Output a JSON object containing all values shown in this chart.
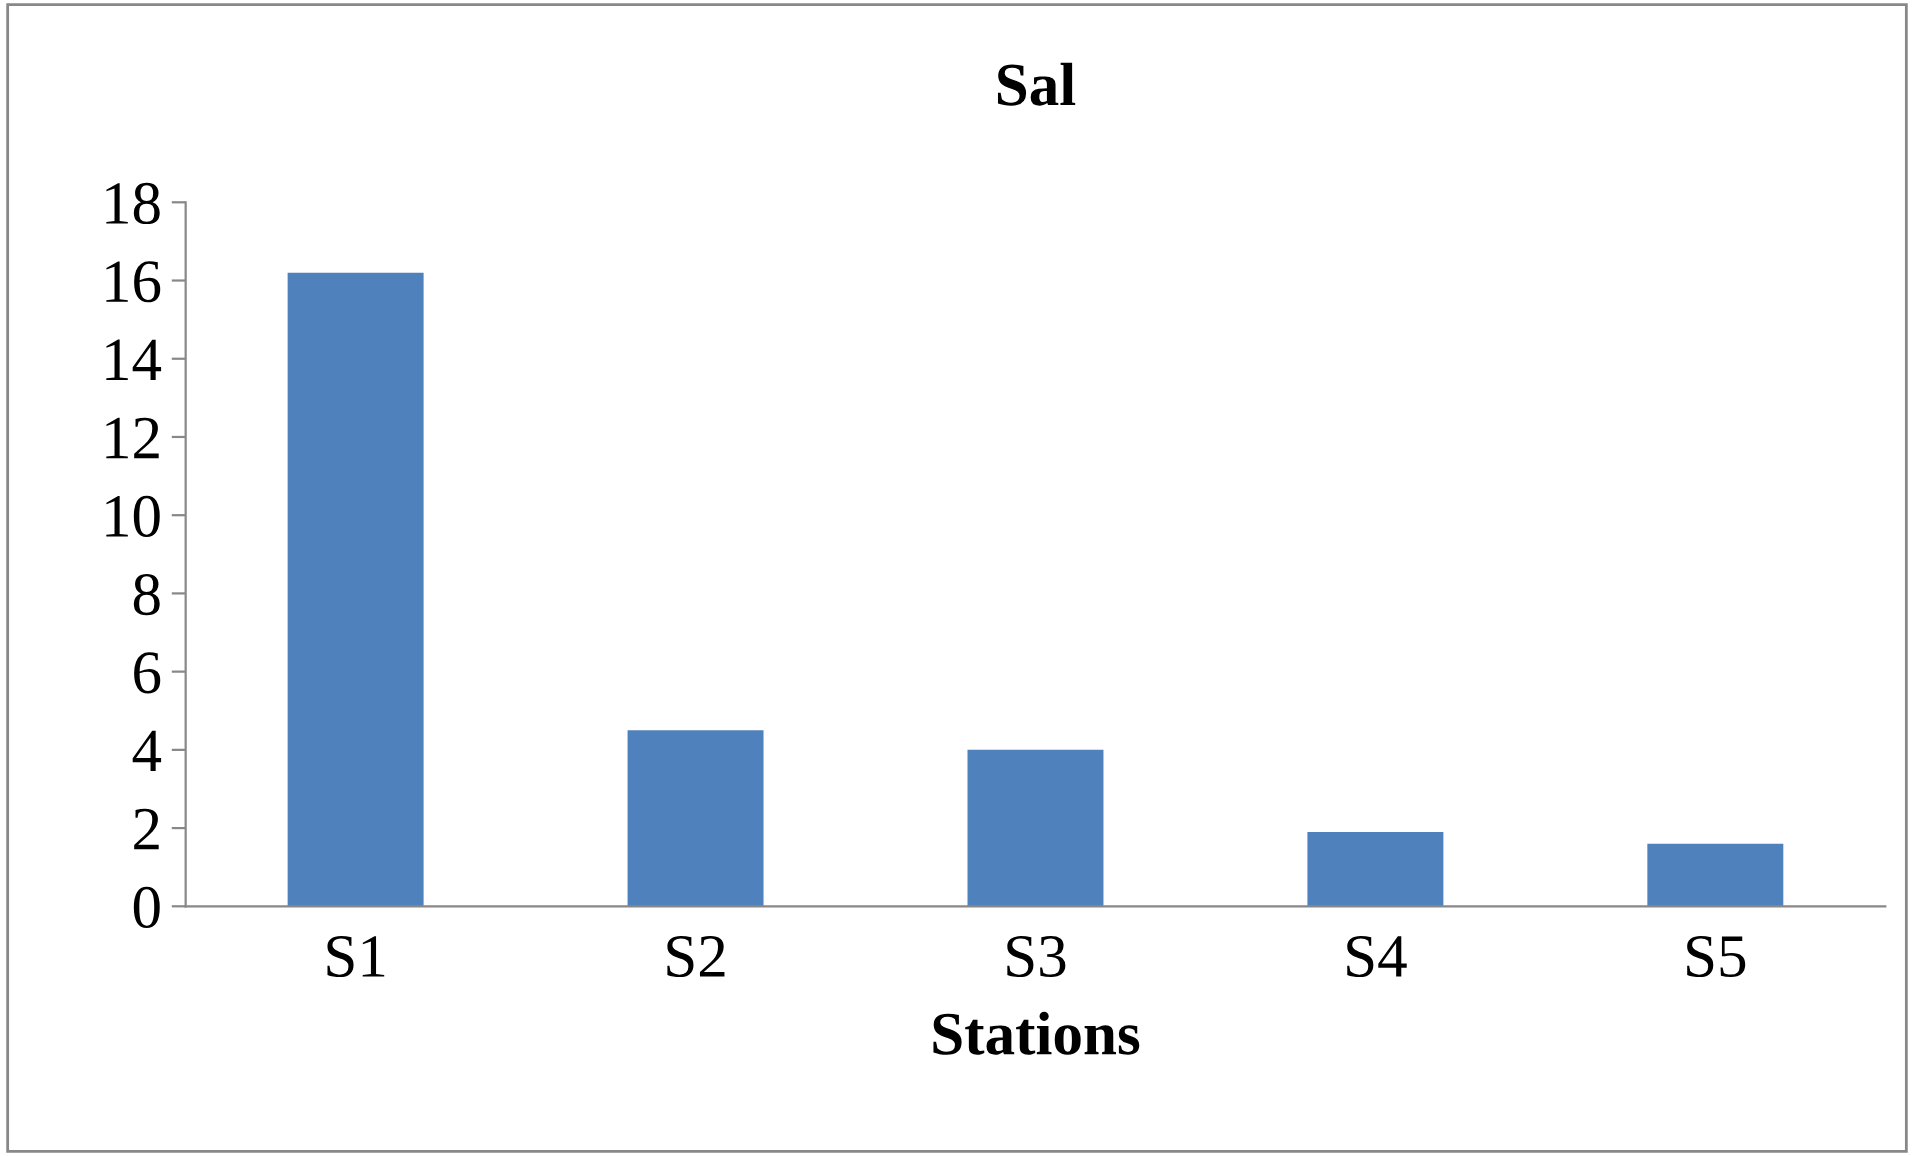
{
  "chart_data": {
    "type": "bar",
    "title": "Sal",
    "xlabel": "Stations",
    "categories": [
      "S1",
      "S2",
      "S3",
      "S4",
      "S5"
    ],
    "values": [
      16.2,
      4.5,
      4.0,
      1.9,
      1.6
    ],
    "color": "#4f81bd",
    "ylim": [
      0,
      18
    ],
    "yticks": [
      0,
      2,
      4,
      6,
      8,
      10,
      12,
      14,
      16,
      18
    ],
    "grid": false,
    "legend": false
  }
}
